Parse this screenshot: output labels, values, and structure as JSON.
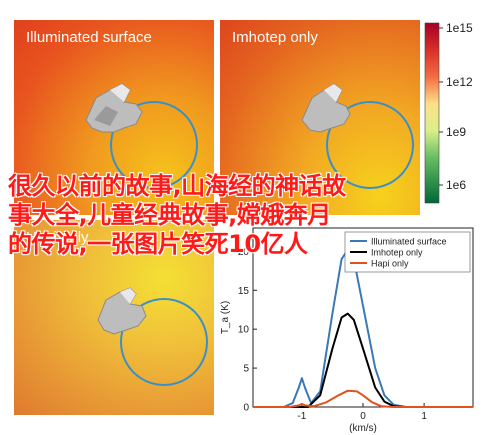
{
  "panels": {
    "top_left": {
      "title": "Illuminated surface"
    },
    "top_right": {
      "title": "Imhotep only"
    },
    "bottom_left": {
      "title": "Hapi only"
    }
  },
  "colorbar": {
    "tick_labels": [
      "1e15",
      "1e12",
      "1e9",
      "1e6"
    ],
    "colors": [
      "#a50026",
      "#d73027",
      "#f46d43",
      "#fdae61",
      "#fee08b",
      "#d9ef8b",
      "#a6d96a",
      "#66bd63",
      "#1a9850",
      "#006837"
    ]
  },
  "overlay_text": {
    "line1": "很久以前的故事,山海经的神话故",
    "line2": "事大全,儿童经典故事,嫦娥奔月",
    "line3": "的传说,一张图片笑死10亿人"
  },
  "chart_data": {
    "type": "line",
    "xlabel": "(km/s)",
    "ylabel": "T_a (K)",
    "xlim": [
      -1.8,
      1.8
    ],
    "ylim": [
      0,
      23
    ],
    "x_ticks": [
      -1,
      0,
      1
    ],
    "y_ticks": [
      0,
      5,
      10,
      15,
      20
    ],
    "legend_position": "top-right",
    "series": [
      {
        "name": "Illuminated surface",
        "color": "#3b78b6",
        "x": [
          -1.8,
          -1.3,
          -1.15,
          -1.05,
          -1.0,
          -0.95,
          -0.85,
          -0.7,
          -0.5,
          -0.35,
          -0.25,
          -0.15,
          0.0,
          0.2,
          0.35,
          0.5,
          0.7,
          1.0,
          1.8
        ],
        "y": [
          0,
          0,
          0.5,
          2.5,
          3.7,
          2.5,
          0.5,
          2,
          12,
          19,
          20.2,
          19,
          13,
          5,
          1.5,
          0.3,
          0,
          0,
          0
        ]
      },
      {
        "name": "Imhotep only",
        "color": "#000000",
        "x": [
          -1.8,
          -0.9,
          -0.7,
          -0.5,
          -0.35,
          -0.25,
          -0.15,
          0.0,
          0.2,
          0.35,
          0.5,
          0.7,
          1.8
        ],
        "y": [
          0,
          0,
          1.5,
          7.5,
          11.5,
          12,
          11.2,
          7.5,
          2.5,
          0.7,
          0.1,
          0,
          0
        ]
      },
      {
        "name": "Hapi only",
        "color": "#e0531f",
        "x": [
          -1.8,
          -1.2,
          -1.05,
          -1.0,
          -0.95,
          -0.8,
          -0.6,
          -0.4,
          -0.25,
          -0.1,
          0.0,
          0.15,
          0.3,
          0.5,
          1.8
        ],
        "y": [
          0,
          0,
          0.2,
          0.4,
          0.2,
          0.1,
          0.6,
          1.5,
          2.1,
          2.0,
          1.5,
          0.6,
          0.1,
          0,
          0
        ]
      }
    ]
  }
}
